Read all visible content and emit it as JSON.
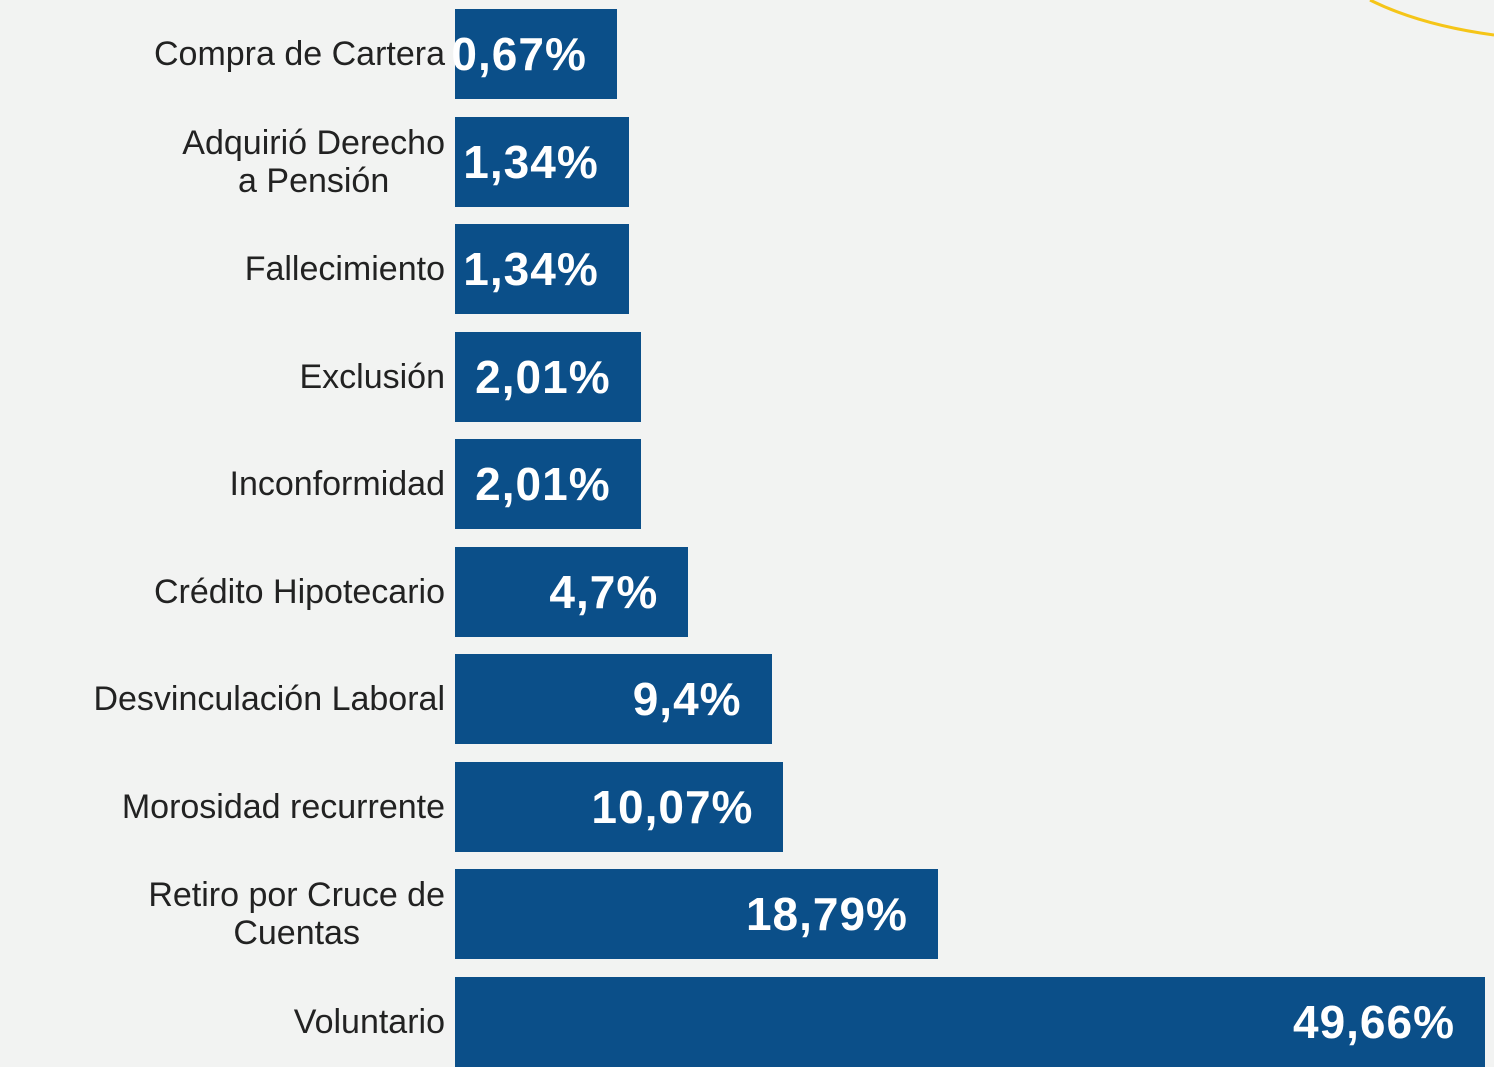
{
  "chart_data": {
    "type": "bar",
    "orientation": "horizontal",
    "color": "#0b4f89",
    "categories": [
      "Compra de Cartera",
      "Adquirió Derecho\na Pensión",
      "Fallecimiento",
      "Exclusión",
      "Inconformidad",
      "Crédito Hipotecario",
      "Desvinculación Laboral",
      "Morosidad recurrente",
      "Retiro por Cruce de\nCuentas",
      "Voluntario"
    ],
    "values": [
      0.67,
      1.34,
      1.34,
      2.01,
      2.01,
      4.7,
      9.4,
      10.07,
      18.79,
      49.66
    ],
    "value_labels": [
      "0,67%",
      "1,34%",
      "1,34%",
      "2,01%",
      "2,01%",
      "4,7%",
      "9,4%",
      "10,07%",
      "18,79%",
      "49,66%"
    ]
  }
}
